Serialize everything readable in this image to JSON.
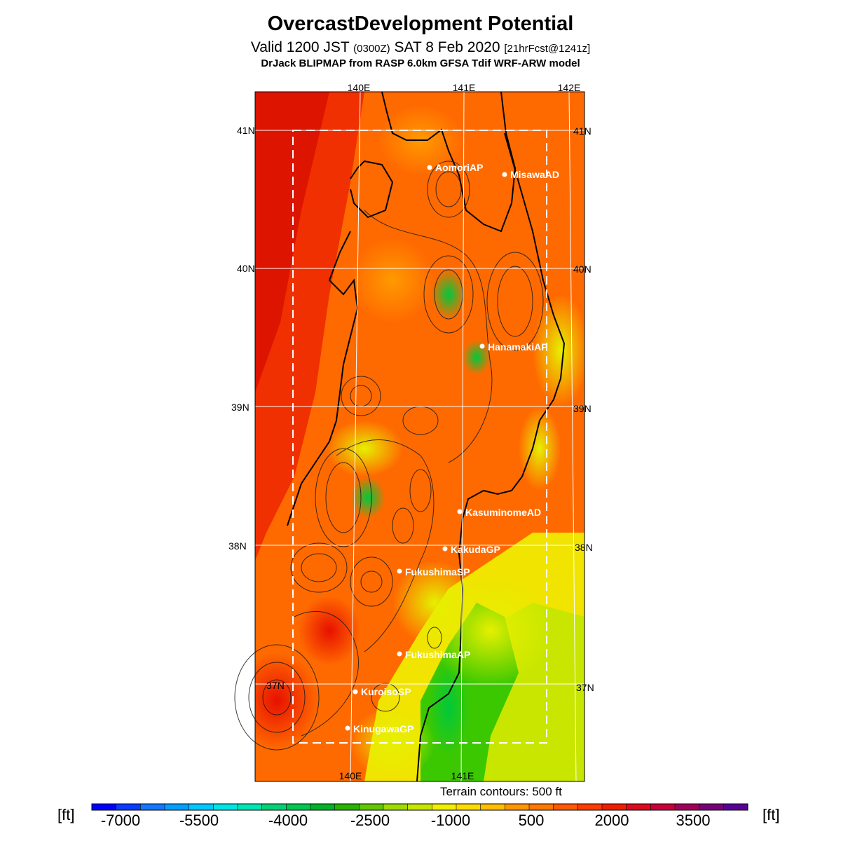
{
  "header": {
    "title": "OvercastDevelopment Potential",
    "valid_prefix": "Valid 1200 JST",
    "valid_zulu": "(0300Z)",
    "valid_date": "SAT 8 Feb 2020",
    "forecast_tag": "[21hrFcst@1241z]",
    "model_line": "DrJack BLIPMAP from RASP 6.0km GFSA Tdif WRF-ARW model"
  },
  "map": {
    "lon_labels_top": [
      "140E",
      "141E",
      "142E"
    ],
    "lon_labels_bottom": [
      "140E",
      "141E"
    ],
    "lat_labels": [
      "41N",
      "40N",
      "39N",
      "38N",
      "37N"
    ],
    "stations": [
      {
        "name": "AomoriAP"
      },
      {
        "name": "MisawaAD"
      },
      {
        "name": "HanamakiAP"
      },
      {
        "name": "KasuminomeAD"
      },
      {
        "name": "KakudaGP"
      },
      {
        "name": "FukushimaSP"
      },
      {
        "name": "FukushimaAP"
      },
      {
        "name": "KuroisoSP"
      },
      {
        "name": "KinugawaGP"
      }
    ],
    "terrain_note": "Terrain contours: 500 ft",
    "colors": {
      "land_outline": "#000000",
      "grid": "#ffffff",
      "station": "#ffffff"
    }
  },
  "legend": {
    "unit_left": "[ft]",
    "unit_right": "[ft]",
    "ticks": [
      "-7000",
      "-5500",
      "-4000",
      "-2500",
      "-1000",
      "500",
      "2000",
      "3500"
    ],
    "colors": [
      "#0000ff",
      "#0a3cff",
      "#1478ff",
      "#00a0ff",
      "#00c8ff",
      "#00e6e6",
      "#00e6b4",
      "#00d278",
      "#00c850",
      "#00b428",
      "#28b400",
      "#64c800",
      "#a0dc00",
      "#c8e600",
      "#f0f000",
      "#ffdc00",
      "#ffbe00",
      "#ff9600",
      "#ff7800",
      "#ff5a00",
      "#ff3c00",
      "#f01e00",
      "#dc0a1e",
      "#c8003c",
      "#a0005a",
      "#780078",
      "#5a0096"
    ]
  }
}
